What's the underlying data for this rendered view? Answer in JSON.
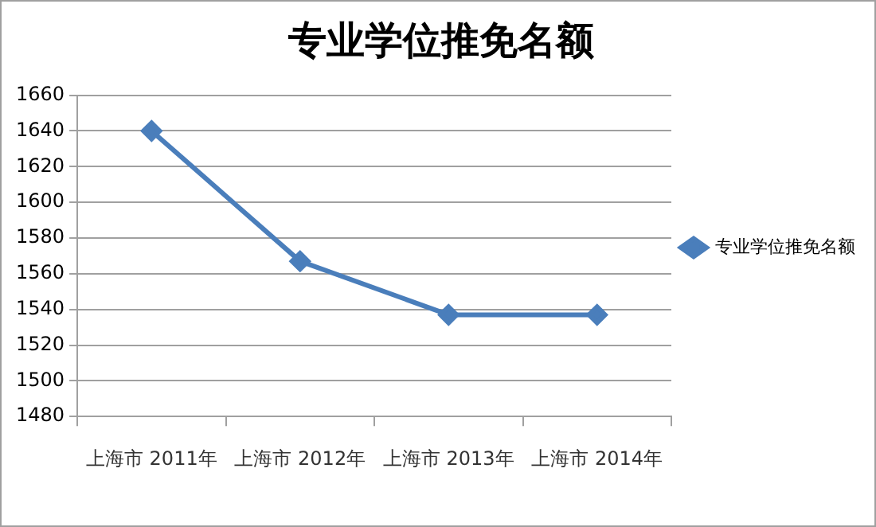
{
  "chart_data": {
    "type": "line",
    "title": "专业学位推免名额",
    "categories": [
      "上海市 2011年",
      "上海市 2012年",
      "上海市 2013年",
      "上海市 2014年"
    ],
    "series": [
      {
        "name": "专业学位推免名额",
        "color": "#4a7ebb",
        "values": [
          1640,
          1567,
          1537,
          1537
        ]
      }
    ],
    "ylim": [
      1480,
      1660
    ],
    "yticks": [
      1480,
      1500,
      1520,
      1540,
      1560,
      1580,
      1600,
      1620,
      1640,
      1660
    ],
    "grid": "y",
    "legend": "right",
    "marker": "diamond",
    "line_style": "solid"
  }
}
